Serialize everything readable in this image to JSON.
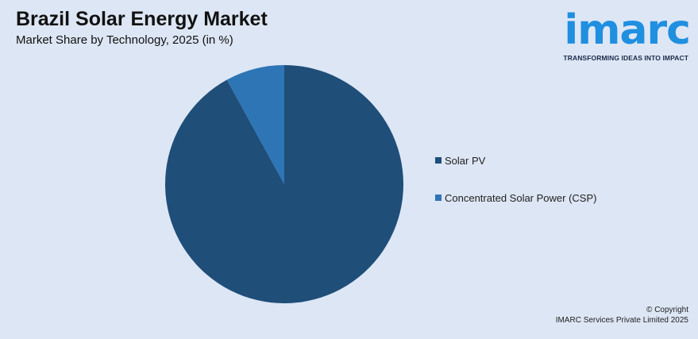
{
  "header": {
    "title": "Brazil Solar Energy Market",
    "subtitle": "Market Share by Technology, 2025 (in %)"
  },
  "logo": {
    "wordmark": "imarc",
    "tagline": "TRANSFORMING IDEAS INTO IMPACT",
    "color": "#1f8fe0"
  },
  "chart_data": {
    "type": "pie",
    "title": "Brazil Solar Energy Market",
    "subtitle": "Market Share by Technology, 2025 (in %)",
    "categories": [
      "Solar PV",
      "Concentrated Solar Power (CSP)"
    ],
    "values": [
      92,
      8
    ],
    "colors": [
      "#1f4e79",
      "#2e75b6"
    ],
    "start_angle": "top, counterclockwise order for CSP",
    "legend_position": "right"
  },
  "footer": {
    "copyright_line1": "© Copyright",
    "copyright_line2": "IMARC Services Private Limited 2025"
  }
}
